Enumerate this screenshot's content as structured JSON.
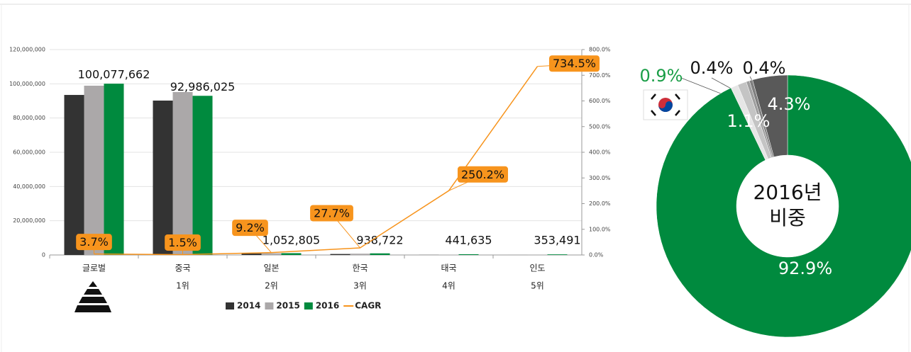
{
  "chart_data": [
    {
      "type": "bar",
      "categories": [
        "글로벌",
        "중국",
        "일본",
        "한국",
        "태국",
        "인도"
      ],
      "rank_labels": [
        null,
        "1위",
        "2위",
        "3위",
        "4위",
        "5위"
      ],
      "series": [
        {
          "name": "2014",
          "color": "#333333",
          "values": [
            93500000,
            90200000,
            900000,
            575000,
            36000,
            5000
          ]
        },
        {
          "name": "2015",
          "color": "#aba8a9",
          "values": [
            98900000,
            95200000,
            1000000,
            750000,
            120000,
            50000
          ]
        },
        {
          "name": "2016",
          "color": "#008a3e",
          "values": [
            100077662,
            92986025,
            1052805,
            938722,
            441635,
            353491
          ],
          "value_labels": [
            "100,077,662",
            "92,986,025",
            "1,052,805",
            "938,722",
            "441,635",
            "353,491"
          ]
        },
        {
          "name": "CAGR",
          "type": "line",
          "axis": "y2",
          "color": "#f7941d",
          "values": [
            3.7,
            1.5,
            9.2,
            27.7,
            250.2,
            734.5
          ],
          "value_labels": [
            "3.7%",
            "1.5%",
            "9.2%",
            "27.7%",
            "250.2%",
            "734.5%"
          ]
        }
      ],
      "ylim": [
        0,
        120000000
      ],
      "yticks": [
        0,
        {
          "value": 20000000,
          "label": "20,000,000"
        },
        {
          "value": 40000000,
          "label": "40,000,000"
        },
        {
          "value": 60000000,
          "label": "60,000,000"
        },
        {
          "value": 80000000,
          "label": "80,000,000"
        },
        {
          "value": 100000000,
          "label": "100,000,000"
        },
        {
          "value": 120000000,
          "label": "120,000,000"
        }
      ],
      "y2lim": [
        0,
        800
      ],
      "y2ticks": [
        {
          "value": 0,
          "label": "0.0%"
        },
        {
          "value": 100,
          "label": "100.0%"
        },
        {
          "value": 200,
          "label": "200.0%"
        },
        {
          "value": 300,
          "label": "300.0%"
        },
        {
          "value": 400,
          "label": "400.0%"
        },
        {
          "value": 500,
          "label": "500.0%"
        },
        {
          "value": 600,
          "label": "600.0%"
        },
        {
          "value": 700,
          "label": "700.0%"
        },
        {
          "value": 800,
          "label": "800.0%"
        }
      ],
      "grid": true,
      "legend": "bottom"
    },
    {
      "type": "donut",
      "center_text": [
        "2016년",
        "비중"
      ],
      "values": [
        92.9,
        0.9,
        1.1,
        0.4,
        0.4,
        4.3
      ],
      "value_labels": [
        "92.9%",
        "0.9%",
        "1.1%",
        "0.4%",
        "0.4%",
        "4.3%"
      ],
      "colors": [
        "#008a3e",
        "#e6e6e6",
        "#c4c4c4",
        "#9e9e9e",
        "#808080",
        "#595959"
      ],
      "label_colors": [
        "#ffffff",
        "#1a9e47",
        "#ffffff",
        "#111111",
        "#111111",
        "#ffffff"
      ]
    }
  ]
}
